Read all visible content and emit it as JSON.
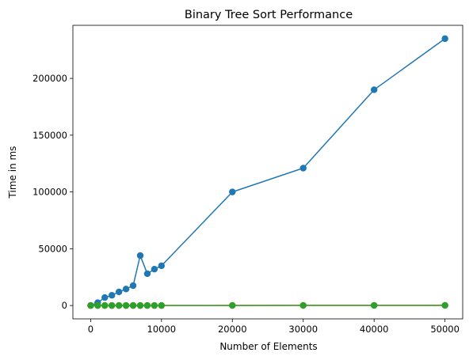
{
  "chart_data": {
    "type": "line",
    "title": "Binary Tree Sort Performance",
    "xlabel": "Number of Elements",
    "ylabel": "Time in ms",
    "xlim": [
      -2500,
      52500
    ],
    "ylim": [
      -11750,
      246750
    ],
    "xticks": [
      0,
      10000,
      20000,
      30000,
      40000,
      50000
    ],
    "yticks": [
      0,
      50000,
      100000,
      150000,
      200000
    ],
    "grid": false,
    "x": [
      10,
      1000,
      2000,
      3000,
      4000,
      5000,
      6000,
      7000,
      8000,
      9000,
      10000,
      20000,
      30000,
      40000,
      50000
    ],
    "series": [
      {
        "color": "#1f77b4",
        "marker": "circle",
        "values": [
          0,
          2500,
          7000,
          9000,
          12000,
          14500,
          17500,
          44000,
          28000,
          32000,
          35000,
          100000,
          121000,
          190000,
          235000
        ]
      },
      {
        "color": "#ff7f0e",
        "marker": "circle",
        "values": [
          0,
          3,
          6,
          9,
          12,
          15,
          18,
          21,
          24,
          27,
          30,
          60,
          90,
          120,
          150
        ]
      },
      {
        "color": "#2ca02c",
        "marker": "circle",
        "values": [
          0,
          2,
          4,
          6,
          8,
          10,
          12,
          14,
          16,
          18,
          20,
          40,
          60,
          80,
          100
        ]
      }
    ]
  }
}
